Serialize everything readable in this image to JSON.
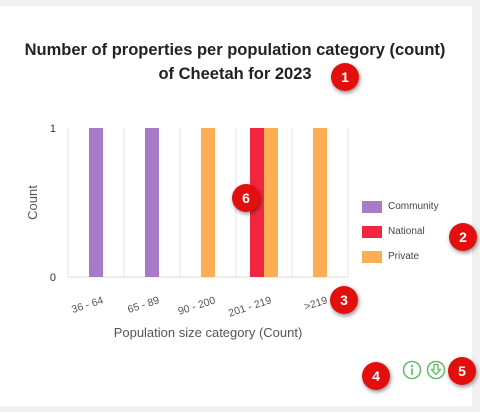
{
  "title_line1": "Number of properties per population category (count)",
  "title_line2": "of Cheetah for 2023",
  "chart_data": {
    "type": "bar",
    "title": "Number of properties per population category (count) of Cheetah for 2023",
    "xlabel": "Population size category (Count)",
    "ylabel": "Count",
    "ylim": [
      0,
      1
    ],
    "yticks": [
      0,
      1
    ],
    "categories": [
      "36 - 64",
      "65 - 89",
      "90 - 200",
      "201 - 219",
      ">219"
    ],
    "series": [
      {
        "name": "Community",
        "color": "#a87bc8",
        "values": [
          1,
          1,
          0,
          0,
          0
        ]
      },
      {
        "name": "National",
        "color": "#f2273f",
        "values": [
          0,
          0,
          0,
          1,
          0
        ]
      },
      {
        "name": "Private",
        "color": "#fbae54",
        "values": [
          0,
          0,
          1,
          1,
          1
        ]
      }
    ],
    "legend_position": "right"
  },
  "badges": [
    "1",
    "2",
    "3",
    "4",
    "5",
    "6"
  ],
  "icons": {
    "info": "info-icon",
    "download": "download-icon",
    "accent": "#6abf69"
  }
}
